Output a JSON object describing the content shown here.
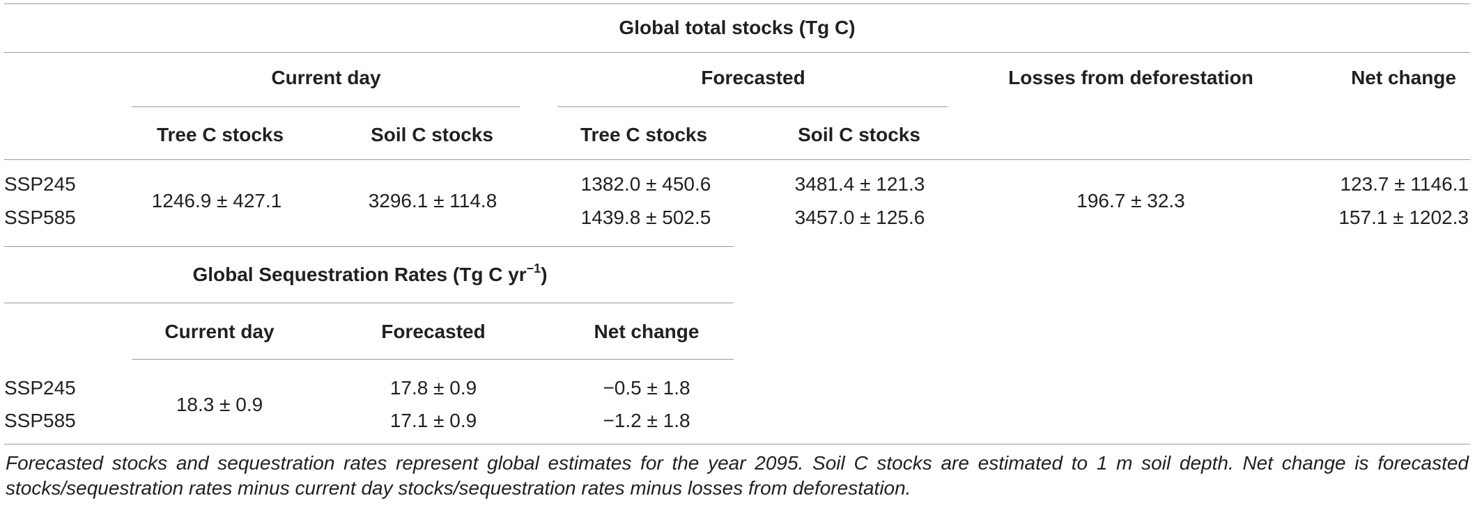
{
  "table1": {
    "title": "Global total stocks (Tg C)",
    "group_current": "Current day",
    "group_forecast": "Forecasted",
    "col_losses": "Losses from deforestation",
    "col_net": "Net change",
    "sub_tree_1": "Tree C stocks",
    "sub_soil_1": "Soil C stocks",
    "sub_tree_2": "Tree C stocks",
    "sub_soil_2": "Soil C stocks",
    "row_ssp245": "SSP245",
    "row_ssp585": "SSP585",
    "current_tree": "1246.9 ± 427.1",
    "current_soil": "3296.1 ± 114.8",
    "forecast_tree_245": "1382.0 ± 450.6",
    "forecast_tree_585": "1439.8 ± 502.5",
    "forecast_soil_245": "3481.4 ± 121.3",
    "forecast_soil_585": "3457.0 ± 125.6",
    "losses": "196.7 ± 32.3",
    "net_245": "123.7 ± 1146.1",
    "net_585": "157.1 ± 1202.3"
  },
  "table2": {
    "title_main": "Global Sequestration Rates (Tg C yr",
    "title_sup": "−1",
    "title_end": ")",
    "col_current": "Current day",
    "col_forecast": "Forecasted",
    "col_net": "Net change",
    "row_ssp245": "SSP245",
    "row_ssp585": "SSP585",
    "current": "18.3 ± 0.9",
    "forecast_245": "17.8 ± 0.9",
    "forecast_585": "17.1 ± 0.9",
    "net_245": "−0.5 ± 1.8",
    "net_585": "−1.2 ± 1.8"
  },
  "footnote": "Forecasted stocks and sequestration rates represent global estimates for the year 2095. Soil C stocks are estimated to 1 m soil depth. Net change is forecasted stocks/sequestration rates minus current day stocks/sequestration rates minus losses from deforestation."
}
